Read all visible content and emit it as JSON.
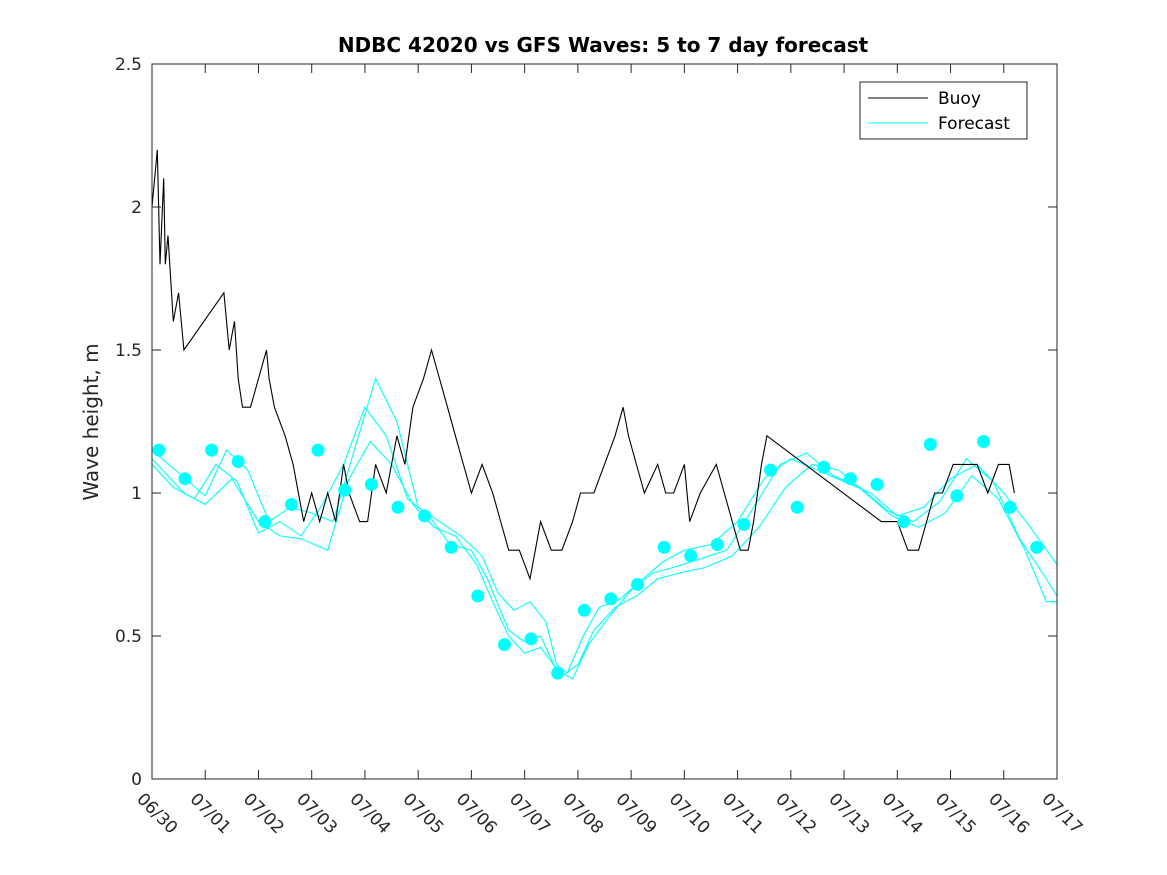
{
  "chart_data": {
    "type": "line",
    "title": "NDBC 42020 vs GFS Waves: 5 to 7 day forecast",
    "xlabel": "",
    "ylabel": "Wave height, m",
    "ylim": [
      0,
      2.5
    ],
    "xlim": [
      0,
      17
    ],
    "x_unit": "days since 06/30",
    "yticks": [
      0,
      0.5,
      1,
      1.5,
      2,
      2.5
    ],
    "ytick_labels": [
      "0",
      "0.5",
      "1",
      "1.5",
      "2",
      "2.5"
    ],
    "xtick_labels": [
      "06/30",
      "07/01",
      "07/02",
      "07/03",
      "07/04",
      "07/05",
      "07/06",
      "07/07",
      "07/08",
      "07/09",
      "07/10",
      "07/11",
      "07/12",
      "07/13",
      "07/14",
      "07/15",
      "07/16",
      "07/17"
    ],
    "grid": false,
    "legend": {
      "placement": "top-right",
      "entries": [
        {
          "label": "Buoy",
          "color": "#000000"
        },
        {
          "label": "Forecast",
          "color": "#00ffff"
        }
      ]
    },
    "series": [
      {
        "name": "Buoy",
        "color": "#000000",
        "points": [
          [
            0.0,
            2.0
          ],
          [
            0.1,
            2.2
          ],
          [
            0.15,
            1.8
          ],
          [
            0.22,
            2.1
          ],
          [
            0.25,
            1.8
          ],
          [
            0.3,
            1.9
          ],
          [
            0.4,
            1.6
          ],
          [
            0.5,
            1.7
          ],
          [
            0.6,
            1.5
          ],
          [
            1.35,
            1.7
          ],
          [
            1.45,
            1.5
          ],
          [
            1.55,
            1.6
          ],
          [
            1.62,
            1.4
          ],
          [
            1.7,
            1.3
          ],
          [
            1.85,
            1.3
          ],
          [
            2.0,
            1.4
          ],
          [
            2.15,
            1.5
          ],
          [
            2.2,
            1.4
          ],
          [
            2.3,
            1.3
          ],
          [
            2.5,
            1.2
          ],
          [
            2.65,
            1.1
          ],
          [
            2.75,
            1.0
          ],
          [
            2.85,
            0.9
          ],
          [
            3.0,
            1.0
          ],
          [
            3.15,
            0.9
          ],
          [
            3.3,
            1.0
          ],
          [
            3.45,
            0.9
          ],
          [
            3.6,
            1.1
          ],
          [
            3.7,
            1.0
          ],
          [
            3.9,
            0.9
          ],
          [
            4.05,
            0.9
          ],
          [
            4.2,
            1.1
          ],
          [
            4.4,
            1.0
          ],
          [
            4.6,
            1.2
          ],
          [
            4.75,
            1.1
          ],
          [
            4.9,
            1.3
          ],
          [
            5.1,
            1.4
          ],
          [
            5.25,
            1.5
          ],
          [
            5.4,
            1.4
          ],
          [
            5.55,
            1.3
          ],
          [
            5.7,
            1.2
          ],
          [
            5.85,
            1.1
          ],
          [
            6.0,
            1.0
          ],
          [
            6.2,
            1.1
          ],
          [
            6.4,
            1.0
          ],
          [
            6.55,
            0.9
          ],
          [
            6.7,
            0.8
          ],
          [
            6.9,
            0.8
          ],
          [
            7.1,
            0.7
          ],
          [
            7.3,
            0.9
          ],
          [
            7.5,
            0.8
          ],
          [
            7.7,
            0.8
          ],
          [
            7.9,
            0.9
          ],
          [
            8.05,
            1.0
          ],
          [
            8.3,
            1.0
          ],
          [
            8.5,
            1.1
          ],
          [
            8.7,
            1.2
          ],
          [
            8.85,
            1.3
          ],
          [
            8.95,
            1.2
          ],
          [
            9.1,
            1.1
          ],
          [
            9.25,
            1.0
          ],
          [
            9.5,
            1.1
          ],
          [
            9.65,
            1.0
          ],
          [
            9.8,
            1.0
          ],
          [
            10.0,
            1.1
          ],
          [
            10.1,
            0.9
          ],
          [
            10.3,
            1.0
          ],
          [
            10.6,
            1.1
          ],
          [
            10.75,
            1.0
          ],
          [
            10.9,
            0.9
          ],
          [
            11.05,
            0.8
          ],
          [
            11.2,
            0.8
          ],
          [
            11.3,
            0.9
          ],
          [
            11.45,
            1.1
          ],
          [
            11.55,
            1.2
          ],
          [
            13.7,
            0.9
          ],
          [
            14.0,
            0.9
          ],
          [
            14.2,
            0.8
          ],
          [
            14.4,
            0.8
          ],
          [
            14.55,
            0.9
          ],
          [
            14.7,
            1.0
          ],
          [
            14.85,
            1.0
          ],
          [
            15.05,
            1.1
          ],
          [
            15.3,
            1.1
          ],
          [
            15.5,
            1.1
          ],
          [
            15.7,
            1.0
          ],
          [
            15.9,
            1.1
          ],
          [
            16.1,
            1.1
          ],
          [
            16.2,
            1.0
          ]
        ]
      },
      {
        "name": "Forecast",
        "color": "#00ffff",
        "points": [
          [
            0.0,
            1.15
          ],
          [
            0.5,
            1.07
          ],
          [
            1.0,
            0.99
          ],
          [
            1.4,
            1.15
          ],
          [
            1.8,
            1.08
          ],
          [
            2.2,
            0.9
          ],
          [
            2.6,
            0.95
          ],
          [
            3.0,
            0.93
          ],
          [
            3.4,
            0.9
          ],
          [
            3.8,
            1.15
          ],
          [
            4.2,
            1.4
          ],
          [
            4.6,
            1.25
          ],
          [
            5.0,
            0.95
          ],
          [
            5.4,
            0.9
          ],
          [
            5.8,
            0.85
          ],
          [
            6.2,
            0.78
          ],
          [
            6.5,
            0.65
          ],
          [
            6.8,
            0.59
          ],
          [
            7.1,
            0.62
          ],
          [
            7.4,
            0.55
          ],
          [
            7.6,
            0.4
          ],
          [
            7.8,
            0.37
          ],
          [
            8.1,
            0.5
          ],
          [
            8.4,
            0.6
          ],
          [
            8.8,
            0.63
          ],
          [
            9.1,
            0.68
          ],
          [
            9.6,
            0.76
          ],
          [
            10.0,
            0.8
          ],
          [
            10.5,
            0.82
          ],
          [
            11.0,
            0.9
          ],
          [
            11.5,
            1.05
          ],
          [
            12.0,
            1.12
          ],
          [
            12.5,
            1.08
          ],
          [
            13.0,
            1.04
          ],
          [
            13.5,
            1.0
          ],
          [
            14.0,
            0.92
          ],
          [
            14.5,
            0.95
          ],
          [
            15.0,
            1.05
          ],
          [
            15.5,
            1.1
          ],
          [
            16.0,
            1.0
          ],
          [
            16.5,
            0.88
          ],
          [
            17.0,
            0.75
          ]
        ]
      },
      {
        "name": "Forecast",
        "color": "#00ffff",
        "points": [
          [
            0.0,
            1.1
          ],
          [
            0.4,
            1.02
          ],
          [
            0.8,
            0.98
          ],
          [
            1.2,
            1.1
          ],
          [
            1.6,
            1.04
          ],
          [
            2.0,
            0.86
          ],
          [
            2.4,
            0.9
          ],
          [
            2.8,
            0.85
          ],
          [
            3.2,
            0.96
          ],
          [
            3.6,
            1.1
          ],
          [
            4.0,
            1.3
          ],
          [
            4.4,
            1.2
          ],
          [
            4.8,
            0.98
          ],
          [
            5.2,
            0.92
          ],
          [
            5.6,
            0.82
          ],
          [
            6.0,
            0.8
          ],
          [
            6.3,
            0.7
          ],
          [
            6.7,
            0.52
          ],
          [
            7.0,
            0.48
          ],
          [
            7.3,
            0.5
          ],
          [
            7.6,
            0.38
          ],
          [
            7.9,
            0.35
          ],
          [
            8.2,
            0.47
          ],
          [
            8.6,
            0.57
          ],
          [
            9.0,
            0.66
          ],
          [
            9.4,
            0.72
          ],
          [
            9.8,
            0.74
          ],
          [
            10.3,
            0.77
          ],
          [
            10.8,
            0.8
          ],
          [
            11.3,
            0.95
          ],
          [
            11.8,
            1.1
          ],
          [
            12.3,
            1.14
          ],
          [
            12.8,
            1.06
          ],
          [
            13.3,
            1.02
          ],
          [
            13.8,
            0.94
          ],
          [
            14.3,
            0.9
          ],
          [
            14.8,
            0.97
          ],
          [
            15.3,
            1.12
          ],
          [
            15.8,
            1.04
          ],
          [
            16.3,
            0.84
          ],
          [
            16.8,
            0.7
          ],
          [
            17.0,
            0.64
          ]
        ]
      },
      {
        "name": "Forecast",
        "color": "#00ffff",
        "points": [
          [
            0.0,
            1.12
          ],
          [
            0.6,
            1.0
          ],
          [
            1.0,
            0.96
          ],
          [
            1.5,
            1.05
          ],
          [
            2.0,
            0.9
          ],
          [
            2.4,
            0.85
          ],
          [
            2.8,
            0.84
          ],
          [
            3.3,
            0.8
          ],
          [
            3.7,
            1.05
          ],
          [
            4.1,
            1.18
          ],
          [
            4.5,
            1.1
          ],
          [
            4.9,
            0.96
          ],
          [
            5.3,
            0.88
          ],
          [
            5.7,
            0.85
          ],
          [
            6.1,
            0.75
          ],
          [
            6.4,
            0.62
          ],
          [
            6.7,
            0.5
          ],
          [
            7.0,
            0.44
          ],
          [
            7.3,
            0.46
          ],
          [
            7.7,
            0.36
          ],
          [
            8.0,
            0.4
          ],
          [
            8.3,
            0.52
          ],
          [
            8.7,
            0.6
          ],
          [
            9.1,
            0.64
          ],
          [
            9.5,
            0.7
          ],
          [
            9.9,
            0.72
          ],
          [
            10.4,
            0.74
          ],
          [
            10.9,
            0.78
          ],
          [
            11.4,
            0.88
          ],
          [
            11.9,
            1.02
          ],
          [
            12.4,
            1.1
          ],
          [
            12.9,
            1.08
          ],
          [
            13.4,
            1.0
          ],
          [
            13.9,
            0.92
          ],
          [
            14.4,
            0.88
          ],
          [
            14.9,
            0.93
          ],
          [
            15.4,
            1.06
          ],
          [
            15.9,
            0.98
          ],
          [
            16.4,
            0.8
          ],
          [
            16.8,
            0.62
          ],
          [
            17.0,
            0.62
          ]
        ]
      }
    ],
    "forecast_markers": [
      [
        0.13,
        1.15
      ],
      [
        0.62,
        1.05
      ],
      [
        1.12,
        1.15
      ],
      [
        1.62,
        1.11
      ],
      [
        2.12,
        0.9
      ],
      [
        2.62,
        0.96
      ],
      [
        3.12,
        1.15
      ],
      [
        3.62,
        1.01
      ],
      [
        4.12,
        1.03
      ],
      [
        4.62,
        0.95
      ],
      [
        5.12,
        0.92
      ],
      [
        5.62,
        0.81
      ],
      [
        6.12,
        0.64
      ],
      [
        6.62,
        0.47
      ],
      [
        7.12,
        0.49
      ],
      [
        7.62,
        0.37
      ],
      [
        8.12,
        0.59
      ],
      [
        8.62,
        0.63
      ],
      [
        9.12,
        0.68
      ],
      [
        9.62,
        0.81
      ],
      [
        10.12,
        0.78
      ],
      [
        10.62,
        0.82
      ],
      [
        11.12,
        0.89
      ],
      [
        11.62,
        1.08
      ],
      [
        12.12,
        0.95
      ],
      [
        12.62,
        1.09
      ],
      [
        13.12,
        1.05
      ],
      [
        13.62,
        1.03
      ],
      [
        14.12,
        0.9
      ],
      [
        14.62,
        1.17
      ],
      [
        15.12,
        0.99
      ],
      [
        15.62,
        1.18
      ],
      [
        16.12,
        0.95
      ],
      [
        16.62,
        0.81
      ]
    ]
  }
}
